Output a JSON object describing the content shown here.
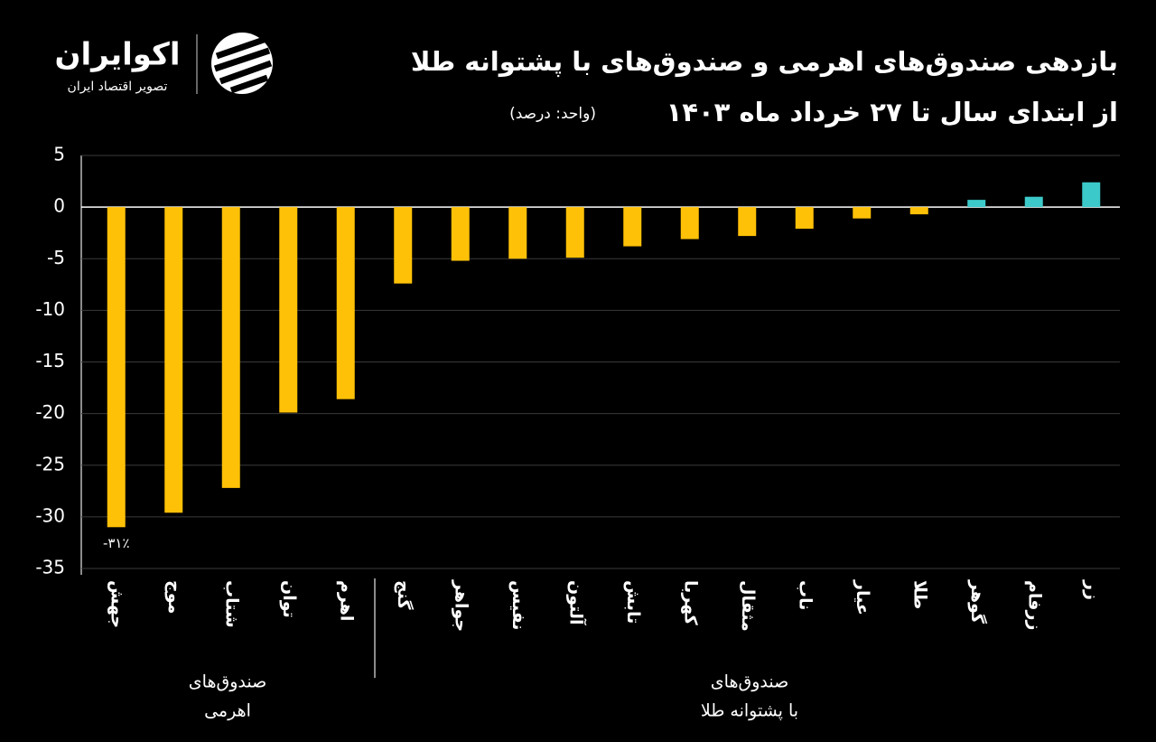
{
  "chart_data": {
    "type": "bar",
    "title": "بازدهی صندوق‌های اهرمی و صندوق‌های با پشتوانه طلا",
    "subtitle": "از ابتدای سال تا ۲۷ خرداد ماه ۱۴۰۳",
    "unit": "(واحد: درصد)",
    "brand": {
      "name": "اکوایران",
      "tagline": "تصویر اقتصاد ایران"
    },
    "categories": [
      "جهش",
      "موج",
      "شتاب",
      "توان",
      "اهرم",
      "گنج",
      "جواهر",
      "نفیس",
      "آلتون",
      "تابش",
      "کهربا",
      "مثقال",
      "ناب",
      "عیار",
      "طلا",
      "گوهر",
      "زرفام",
      "زر"
    ],
    "values": [
      -31,
      -29.6,
      -27.2,
      -19.9,
      -18.6,
      -7.4,
      -5.2,
      -5.0,
      -4.9,
      -3.8,
      -3.1,
      -2.8,
      -2.1,
      -1.1,
      -0.7,
      0.7,
      1.0,
      2.4
    ],
    "value_labels": [
      "-۳۱٪",
      null,
      null,
      null,
      null,
      null,
      null,
      null,
      null,
      null,
      null,
      null,
      null,
      null,
      null,
      null,
      null,
      null
    ],
    "negative_color": "#ffc107",
    "positive_color": "#3cc9c9",
    "groups": [
      {
        "lines": [
          "صندوق‌های",
          "اهرمی"
        ]
      },
      {
        "lines": [
          "صندوق‌های",
          "با پشتوانه طلا"
        ]
      }
    ],
    "ylim": [
      -35,
      5
    ],
    "yticks": [
      5,
      0,
      -5,
      -10,
      -15,
      -20,
      -25,
      -30,
      -35
    ],
    "grid": true
  }
}
